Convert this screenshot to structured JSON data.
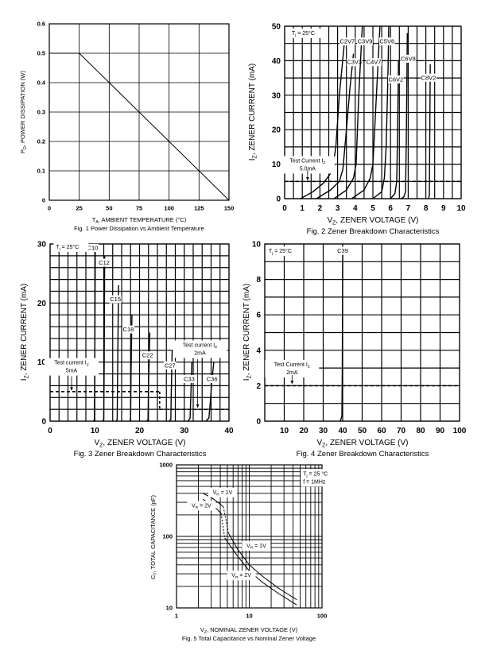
{
  "chart_data": [
    {
      "type": "line",
      "caption": "Fig. 1  Power Dissipation vs Ambient Temperature",
      "xlabel": {
        "sym": "T",
        "sub": "A",
        "rest": ", AMBIENT TEMPERATURE (°C)"
      },
      "ylabel": {
        "sym": "P",
        "sub": "D",
        "rest": ", POWER DISSIPATION (W)"
      },
      "xlim": [
        0,
        150
      ],
      "ylim": [
        0,
        0.6
      ],
      "xscale": "linear",
      "yscale": "linear",
      "xticks": [
        0,
        25,
        50,
        75,
        100,
        125,
        150
      ],
      "yticks": [
        0,
        0.1,
        0.2,
        0.3,
        0.4,
        0.5,
        0.6
      ],
      "grid": true,
      "series": [
        {
          "x": [
            0,
            25,
            150
          ],
          "y": [
            0.5,
            0.5,
            0
          ]
        }
      ],
      "annotations": []
    },
    {
      "type": "line",
      "caption": "Fig. 2  Zener Breakdown Characteristics",
      "xlabel": {
        "sym": "V",
        "sub": "Z",
        "rest": ", ZENER VOLTAGE (V)"
      },
      "ylabel": {
        "sym": "I",
        "sub": "Z",
        "rest": ", ZENER CURRENT (mA)"
      },
      "xlim": [
        0,
        10
      ],
      "ylim": [
        0,
        50
      ],
      "xscale": "linear",
      "yscale": "linear",
      "xticks": [
        0,
        1,
        2,
        3,
        4,
        5,
        6,
        7,
        8,
        9,
        10
      ],
      "yticks": [
        0,
        10,
        20,
        30,
        40,
        50
      ],
      "grid": true,
      "series": [
        {
          "name": "C2V7",
          "x": [
            0.9,
            1.6,
            2.2,
            2.7,
            2.9,
            3.1,
            3.4
          ],
          "y": [
            0,
            2,
            4.5,
            8,
            15,
            30,
            46
          ]
        },
        {
          "name": "C3V3",
          "x": [
            1.8,
            2.6,
            3.1,
            3.3,
            3.5,
            3.7,
            3.9
          ],
          "y": [
            0,
            2.5,
            5,
            8.5,
            20,
            32,
            42
          ]
        },
        {
          "name": "C3V9",
          "x": [
            2.8,
            3.5,
            3.9,
            4.05,
            4.2,
            4.4
          ],
          "y": [
            0,
            2.5,
            6,
            10,
            30,
            50
          ]
        },
        {
          "name": "C4V7",
          "x": [
            3.8,
            4.5,
            4.85,
            5.0,
            5.2,
            5.4
          ],
          "y": [
            0,
            2.5,
            6,
            10,
            30,
            50
          ]
        },
        {
          "name": "C5V6",
          "x": [
            5.0,
            5.5,
            5.65,
            5.75,
            5.85,
            5.9
          ],
          "y": [
            0,
            2,
            6,
            15,
            35,
            50
          ]
        },
        {
          "name": "C6V2",
          "x": [
            6.0,
            6.25,
            6.35,
            6.4,
            6.45
          ],
          "y": [
            0,
            1.5,
            5,
            20,
            40
          ]
        },
        {
          "name": "C6V8",
          "x": [
            6.6,
            6.75,
            6.85,
            6.9,
            6.95
          ],
          "y": [
            0,
            0.5,
            2,
            20,
            48
          ]
        },
        {
          "name": "C8V2",
          "x": [
            8.15,
            8.2,
            8.25
          ],
          "y": [
            0,
            1,
            39
          ]
        }
      ],
      "reference_lines": [
        {
          "y": 5,
          "style": "dashed"
        }
      ],
      "annotations": [
        {
          "line1": {
            "sym": "T",
            "sub": "j",
            "rest": " = 25°C"
          }
        },
        {
          "line1": {
            "sym": "Test Current I",
            "sub": "Z",
            "rest": ""
          },
          "line2": "5.0mA"
        }
      ]
    },
    {
      "type": "line",
      "caption": "Fig. 3  Zener Breakdown Characteristics",
      "xlabel": {
        "sym": "V",
        "sub": "Z",
        "rest": ", ZENER VOLTAGE (V)"
      },
      "ylabel": {
        "sym": "I",
        "sub": "Z",
        "rest": ", ZENER CURRENT (mA)"
      },
      "xlim": [
        0,
        40
      ],
      "ylim": [
        0,
        30
      ],
      "xscale": "linear",
      "yscale": "linear",
      "xticks": [
        0,
        10,
        20,
        30,
        40
      ],
      "yticks": [
        0,
        10,
        20,
        30
      ],
      "grid": true,
      "series": [
        {
          "name": "C10",
          "x": [
            9.7,
            9.9,
            10.0,
            10.1
          ],
          "y": [
            0,
            0.3,
            10,
            30
          ]
        },
        {
          "name": "C12",
          "x": [
            11.8,
            12.0,
            12.1,
            12.2
          ],
          "y": [
            0,
            0.3,
            10,
            28
          ]
        },
        {
          "name": "C15",
          "x": [
            14.8,
            15.0,
            15.1,
            15.3
          ],
          "y": [
            0,
            0.3,
            8,
            23
          ]
        },
        {
          "name": "C18",
          "x": [
            17.8,
            18.0,
            18.1,
            18.3
          ],
          "y": [
            0,
            0.3,
            8,
            18
          ]
        },
        {
          "name": "C22",
          "x": [
            21.6,
            21.9,
            22.0,
            22.3
          ],
          "y": [
            0,
            0.3,
            6,
            15
          ]
        },
        {
          "name": "C27",
          "x": [
            26.6,
            27.0,
            27.1,
            27.3
          ],
          "y": [
            0,
            0.3,
            5,
            12
          ]
        },
        {
          "name": "C33",
          "x": [
            30.8,
            31.3,
            31.5,
            31.7
          ],
          "y": [
            0,
            0.5,
            5,
            10
          ]
        },
        {
          "name": "C36",
          "x": [
            34.8,
            35.5,
            35.8,
            36.2,
            36.6
          ],
          "y": [
            0,
            0.5,
            3,
            7,
            10
          ]
        }
      ],
      "reference_lines": [
        {
          "x": [
            0,
            24.5
          ],
          "y": 5,
          "style": "dashed"
        },
        {
          "x": [
            24.5,
            40
          ],
          "y": 2,
          "style": "dashed"
        }
      ],
      "annotations": [
        {
          "line1": {
            "sym": "T",
            "sub": "j",
            "rest": " = 25°C"
          }
        },
        {
          "line1": {
            "sym": "Test current I",
            "sub": "Z",
            "rest": ""
          },
          "line2": "5mA"
        },
        {
          "line1": {
            "sym": "Test current I",
            "sub": "Z",
            "rest": ""
          },
          "line2": "2mA"
        }
      ]
    },
    {
      "type": "line",
      "caption": "Fig. 4  Zener Breakdown Characteristics",
      "xlabel": {
        "sym": "V",
        "sub": "Z",
        "rest": ", ZENER VOLTAGE (V)"
      },
      "ylabel": {
        "sym": "I",
        "sub": "Z",
        "rest": ", ZENER CURRENT (mA)"
      },
      "xlim": [
        0,
        100
      ],
      "ylim": [
        0,
        10
      ],
      "xscale": "linear",
      "yscale": "linear",
      "xticks": [
        10,
        20,
        30,
        40,
        50,
        60,
        70,
        80,
        90,
        100
      ],
      "yticks": [
        0,
        2,
        4,
        6,
        8,
        10
      ],
      "grid": true,
      "series": [
        {
          "name": "C39",
          "x": [
            38.8,
            39.6,
            39.8,
            40.0
          ],
          "y": [
            0,
            0.3,
            3,
            9.4
          ]
        }
      ],
      "reference_lines": [
        {
          "y": 2,
          "style": "dashed"
        }
      ],
      "annotations": [
        {
          "line1": {
            "sym": "T",
            "sub": "j",
            "rest": " = 25°C"
          }
        },
        {
          "line1": {
            "sym": "Test Current I",
            "sub": "Z",
            "rest": ""
          },
          "line2": "2mA"
        }
      ]
    },
    {
      "type": "line",
      "caption": "Fig. 5  Total Capacitance vs Nominal Zener Voltage",
      "xlabel": {
        "sym": "V",
        "sub": "Z",
        "rest": ", NOMINAL ZENER VOLTAGE (V)"
      },
      "ylabel": {
        "sym": "C",
        "sub": "T",
        "rest": ", TOTAL CAPACITANCE (pF)"
      },
      "xlim": [
        1,
        100
      ],
      "ylim": [
        10,
        1000
      ],
      "xscale": "log",
      "yscale": "log",
      "xticks": [
        1,
        10,
        100
      ],
      "yticks": [
        10,
        100,
        1000
      ],
      "grid": true,
      "series": [
        {
          "name": "VR = 1V",
          "x": [
            2.3,
            3.0,
            3.7,
            4.4,
            5.2,
            7,
            10,
            15,
            25,
            45
          ],
          "y": [
            400,
            350,
            300,
            260,
            110,
            65,
            40,
            28,
            19,
            13
          ]
        },
        {
          "name": "VR = 2V",
          "x": [
            2.3,
            3.0,
            3.6,
            4.1,
            4.6,
            7,
            10,
            15,
            25,
            45
          ],
          "y": [
            330,
            280,
            240,
            210,
            95,
            52,
            33,
            23,
            16,
            11
          ]
        }
      ],
      "annotations": [
        {
          "line1": {
            "sym": "T",
            "sub": "j",
            "rest": " = 25 °C"
          },
          "line2": "f = 1MHz"
        },
        {
          "line1": {
            "sym": "V",
            "sub": "R",
            "rest": " = 1V"
          }
        },
        {
          "line1": {
            "sym": "V",
            "sub": "R",
            "rest": " = 2V"
          }
        },
        {
          "line1": {
            "sym": "V",
            "sub": "R",
            "rest": " = 1V"
          }
        },
        {
          "line1": {
            "sym": "V",
            "sub": "R",
            "rest": " = 2V"
          }
        }
      ]
    }
  ]
}
